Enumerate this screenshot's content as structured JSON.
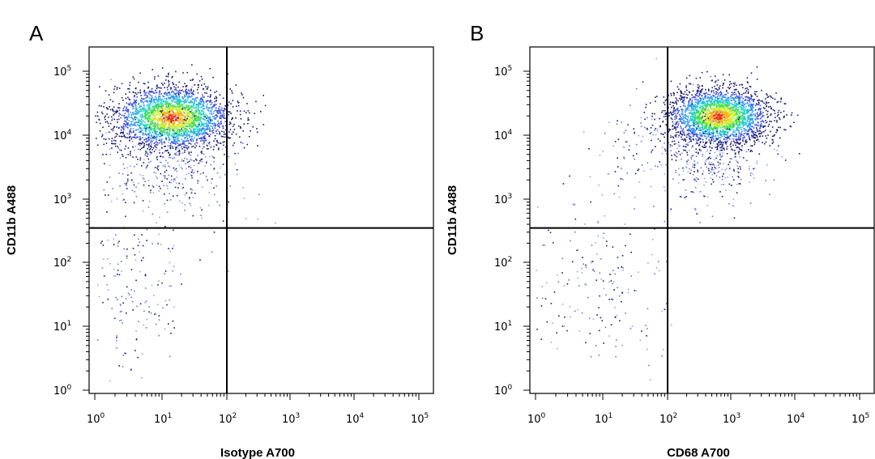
{
  "chart_data": [
    {
      "type": "scatter",
      "subtype": "flow-cytometry-density-dot-plot",
      "panel_label": "A",
      "xlabel": "Isotype A700",
      "ylabel": "CD11b A488",
      "xscale": "log",
      "yscale": "log",
      "xlim": [
        1,
        100000
      ],
      "ylim": [
        1,
        200000
      ],
      "x_ticks": [
        {
          "base": "10",
          "exp": "0"
        },
        {
          "base": "10",
          "exp": "1"
        },
        {
          "base": "10",
          "exp": "2"
        },
        {
          "base": "10",
          "exp": "3"
        },
        {
          "base": "10",
          "exp": "4"
        },
        {
          "base": "10",
          "exp": "5"
        }
      ],
      "y_ticks": [
        {
          "base": "10",
          "exp": "0"
        },
        {
          "base": "10",
          "exp": "1"
        },
        {
          "base": "10",
          "exp": "2"
        },
        {
          "base": "10",
          "exp": "3"
        },
        {
          "base": "10",
          "exp": "4"
        },
        {
          "base": "10",
          "exp": "5"
        }
      ],
      "quadrant_gate": {
        "x": 100,
        "y": 350
      },
      "population_peak": {
        "x": 20,
        "y": 20000
      },
      "cell_populations": [
        {
          "name": "main",
          "log_center": [
            1.15,
            4.28
          ],
          "log_spread": [
            0.45,
            0.25
          ],
          "count": 2600,
          "color_by_density": true
        },
        {
          "name": "tail",
          "log_center": [
            1.1,
            3.7
          ],
          "log_spread": [
            0.5,
            0.45
          ],
          "count": 500,
          "color_by_density": false
        },
        {
          "name": "low-events",
          "log_center": [
            0.6,
            1.7
          ],
          "log_spread": [
            0.4,
            0.7
          ],
          "count": 170,
          "color_by_density": false
        },
        {
          "name": "sparse",
          "log_center": [
            2.3,
            2.6
          ],
          "log_spread": [
            0.35,
            0.5
          ],
          "count": 8,
          "color_by_density": false
        }
      ]
    },
    {
      "type": "scatter",
      "subtype": "flow-cytometry-density-dot-plot",
      "panel_label": "B",
      "xlabel": "CD68 A700",
      "ylabel": "CD11b A488",
      "xscale": "log",
      "yscale": "log",
      "xlim": [
        1,
        100000
      ],
      "ylim": [
        1,
        200000
      ],
      "x_ticks": [
        {
          "base": "10",
          "exp": "0"
        },
        {
          "base": "10",
          "exp": "1"
        },
        {
          "base": "10",
          "exp": "2"
        },
        {
          "base": "10",
          "exp": "3"
        },
        {
          "base": "10",
          "exp": "4"
        },
        {
          "base": "10",
          "exp": "5"
        }
      ],
      "y_ticks": [
        {
          "base": "10",
          "exp": "0"
        },
        {
          "base": "10",
          "exp": "1"
        },
        {
          "base": "10",
          "exp": "2"
        },
        {
          "base": "10",
          "exp": "3"
        },
        {
          "base": "10",
          "exp": "4"
        },
        {
          "base": "10",
          "exp": "5"
        }
      ],
      "quadrant_gate": {
        "x": 100,
        "y": 350
      },
      "population_peak": {
        "x": 700,
        "y": 21000
      },
      "cell_populations": [
        {
          "name": "main",
          "log_center": [
            2.8,
            4.3
          ],
          "log_spread": [
            0.4,
            0.22
          ],
          "count": 2500,
          "color_by_density": true
        },
        {
          "name": "tail",
          "log_center": [
            2.6,
            3.75
          ],
          "log_spread": [
            0.45,
            0.4
          ],
          "count": 450,
          "color_by_density": false
        },
        {
          "name": "cd68-neg-high",
          "log_center": [
            1.3,
            3.8
          ],
          "log_spread": [
            0.35,
            0.3
          ],
          "count": 60,
          "color_by_density": false
        },
        {
          "name": "low-events",
          "log_center": [
            1.0,
            1.7
          ],
          "log_spread": [
            0.55,
            0.7
          ],
          "count": 190,
          "color_by_density": false
        }
      ]
    }
  ],
  "colors": {
    "axis": "#000000",
    "gate": "#000000",
    "density_scale": [
      "#1a1a6e",
      "#3a4bd6",
      "#2f9bf0",
      "#1fd0c8",
      "#3fe04a",
      "#c8ef2a",
      "#ffb21a",
      "#f23214"
    ],
    "sparse_event_colors": [
      "#1a1a6e",
      "#6c74d8",
      "#9aa2e8"
    ]
  }
}
